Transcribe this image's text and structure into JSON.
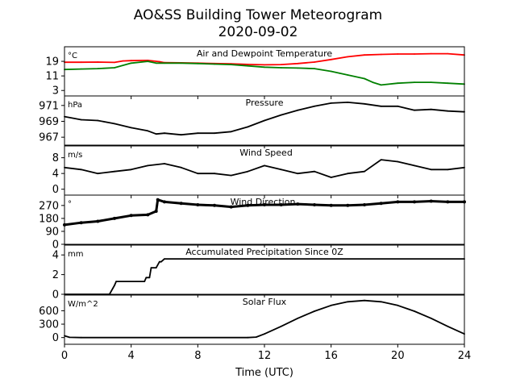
{
  "figure": {
    "title_line1": "AO&SS Building Tower Meteorogram",
    "title_line2": "2020-09-02",
    "xlabel": "Time (UTC)"
  },
  "colors": {
    "air_temperature": "#ff0000",
    "dewpoint": "#008000",
    "default": "#000000"
  },
  "chart_data": [
    {
      "type": "line",
      "title": "Air and Dewpoint Temperature",
      "unit": "°C",
      "xlim": [
        0,
        24
      ],
      "ylim": [
        0,
        27
      ],
      "yticks": [
        3,
        11,
        19
      ],
      "series": [
        {
          "name": "",
          "color": "#ff0000",
          "x": [
            0,
            1,
            2,
            3,
            3.5,
            4,
            5,
            5.7,
            6,
            7,
            8,
            9,
            10,
            11,
            12,
            13,
            14,
            15,
            16,
            17,
            18,
            19,
            20,
            21,
            22,
            23,
            24
          ],
          "y": [
            18.5,
            18.5,
            18.6,
            18.4,
            19.2,
            19.4,
            19.5,
            18.8,
            18.3,
            18.2,
            18.0,
            17.8,
            17.6,
            17.3,
            17.1,
            17.2,
            17.8,
            18.6,
            20.0,
            21.5,
            22.5,
            22.8,
            23.0,
            23.0,
            23.2,
            23.2,
            22.5
          ]
        },
        {
          "name": "",
          "color": "#008000",
          "x": [
            0,
            1,
            2,
            3,
            4,
            5,
            5.5,
            6,
            7,
            8,
            9,
            10,
            11,
            12,
            13,
            14,
            15,
            16,
            16.5,
            17,
            18,
            18.5,
            19,
            20,
            21,
            22,
            23,
            24
          ],
          "y": [
            14.5,
            14.8,
            15.0,
            15.5,
            18.0,
            19.0,
            18.0,
            18.0,
            18.0,
            17.8,
            17.5,
            17.2,
            16.5,
            15.8,
            15.5,
            15.3,
            15.0,
            13.5,
            12.5,
            11.5,
            9.5,
            7.5,
            6.0,
            7.0,
            7.5,
            7.5,
            7.0,
            6.5
          ]
        }
      ]
    },
    {
      "type": "line",
      "title": "Pressure",
      "unit": "hPa",
      "xlim": [
        0,
        24
      ],
      "ylim": [
        966.0,
        972.2
      ],
      "yticks": [
        967,
        969,
        971
      ],
      "series": [
        {
          "name": "",
          "x": [
            0,
            1,
            2,
            3,
            4,
            5,
            5.5,
            6,
            7,
            8,
            9,
            10,
            11,
            12,
            13,
            14,
            15,
            16,
            17,
            18,
            19,
            20,
            21,
            22,
            23,
            24
          ],
          "y": [
            969.6,
            969.2,
            969.1,
            968.7,
            968.2,
            967.8,
            967.4,
            967.5,
            967.3,
            967.5,
            967.5,
            967.7,
            968.3,
            969.1,
            969.8,
            970.4,
            970.9,
            971.3,
            971.4,
            971.2,
            970.9,
            970.9,
            970.4,
            970.5,
            970.3,
            970.2
          ]
        }
      ]
    },
    {
      "type": "line",
      "title": "Wind Speed",
      "unit": "m/s",
      "xlim": [
        0,
        24
      ],
      "ylim": [
        -1.5,
        11
      ],
      "yticks": [
        0,
        4,
        8
      ],
      "series": [
        {
          "name": "",
          "x": [
            0,
            1,
            2,
            3,
            4,
            5,
            6,
            7,
            8,
            9,
            10,
            11,
            12,
            13,
            14,
            15,
            16,
            17,
            18,
            19,
            20,
            21,
            22,
            23,
            24
          ],
          "y": [
            5.5,
            5.0,
            4.0,
            4.5,
            5.0,
            6.0,
            6.5,
            5.5,
            4.0,
            4.0,
            3.5,
            4.5,
            6.0,
            5.0,
            4.0,
            4.5,
            3.0,
            4.0,
            4.5,
            7.5,
            7.0,
            6.0,
            5.0,
            5.0,
            5.5
          ]
        }
      ]
    },
    {
      "type": "scatter",
      "title": "Wind Direction",
      "unit": "°",
      "xlim": [
        0,
        24
      ],
      "ylim": [
        0,
        342
      ],
      "yticks": [
        0,
        90,
        180,
        270
      ],
      "series": [
        {
          "name": "",
          "x": [
            0,
            1,
            2,
            3,
            4,
            5,
            5.5,
            5.6,
            6,
            7,
            8,
            9,
            10,
            11,
            12,
            13,
            14,
            15,
            16,
            17,
            18,
            19,
            20,
            21,
            22,
            23,
            24
          ],
          "y": [
            135,
            150,
            160,
            180,
            200,
            205,
            230,
            310,
            295,
            285,
            275,
            270,
            260,
            270,
            275,
            275,
            280,
            275,
            270,
            270,
            275,
            285,
            295,
            295,
            300,
            295,
            295
          ]
        }
      ]
    },
    {
      "type": "line",
      "title": "Accumulated Precipitation Since 0Z",
      "unit": "mm",
      "xlim": [
        0,
        24
      ],
      "ylim": [
        0,
        5
      ],
      "yticks": [
        0,
        2,
        4
      ],
      "series": [
        {
          "name": "",
          "x": [
            0,
            2.7,
            2.9,
            3.0,
            3.1,
            4.8,
            4.9,
            5.1,
            5.2,
            5.5,
            5.7,
            5.8,
            6.0,
            24
          ],
          "y": [
            0,
            0,
            0.6,
            0.9,
            1.3,
            1.3,
            1.7,
            1.7,
            2.7,
            2.7,
            3.3,
            3.3,
            3.6,
            3.6
          ]
        }
      ]
    },
    {
      "type": "line",
      "title": "Solar Flux",
      "unit": "W/m^2",
      "xlim": [
        0,
        24
      ],
      "ylim": [
        -150,
        950
      ],
      "yticks": [
        0,
        300,
        600
      ],
      "series": [
        {
          "name": "",
          "x": [
            0,
            0.3,
            1,
            11,
            11.5,
            12,
            13,
            14,
            15,
            16,
            17,
            18,
            19,
            20,
            21,
            22,
            23,
            24
          ],
          "y": [
            40,
            5,
            0,
            0,
            10,
            80,
            250,
            430,
            590,
            720,
            800,
            830,
            800,
            720,
            590,
            430,
            250,
            80
          ]
        }
      ]
    }
  ],
  "xaxis": {
    "ticks": [
      "0",
      "4",
      "8",
      "12",
      "16",
      "20",
      "24"
    ]
  }
}
